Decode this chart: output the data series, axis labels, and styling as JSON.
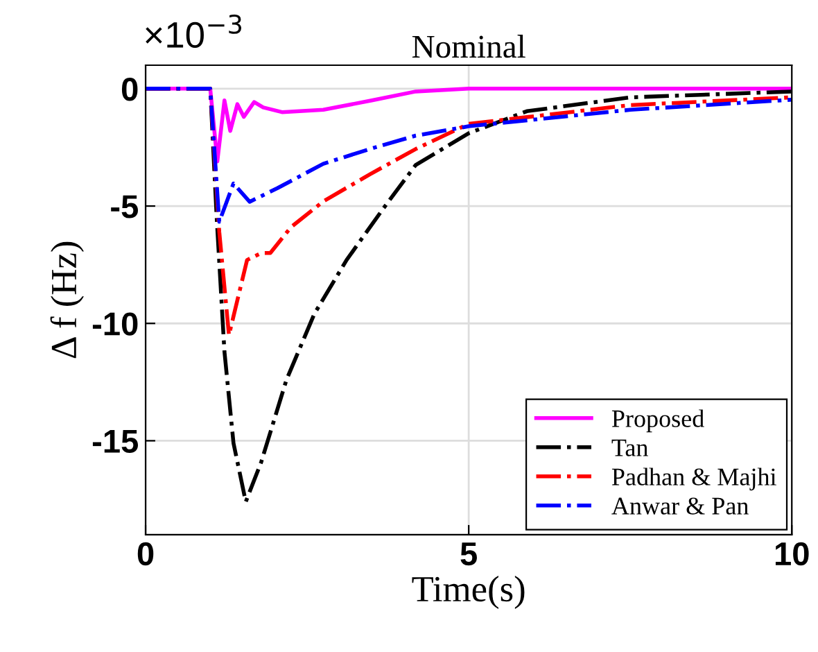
{
  "chart_data": {
    "type": "line",
    "title": "Nominal",
    "xlabel": "Time(s)",
    "ylabel": "Δ f (Hz)",
    "annotations": [
      "×10$^{−3}$"
    ],
    "xlim": [
      0,
      10
    ],
    "ylim": [
      -19,
      1
    ],
    "xticks": [
      0,
      5,
      10
    ],
    "yticks": [
      0,
      -5,
      -10,
      -15
    ],
    "grid": true,
    "legend": "bottom right",
    "marker": "none",
    "series": [
      {
        "name": "Proposed",
        "color": "#ff00ff",
        "line_style": "solid",
        "x": [
          0,
          1.0,
          1.11,
          1.22,
          1.31,
          1.42,
          1.52,
          1.68,
          1.82,
          2.11,
          2.75,
          3.5,
          4.18,
          5,
          6,
          10
        ],
        "values": [
          0,
          0,
          -3.1,
          -0.5,
          -1.8,
          -0.66,
          -1.2,
          -0.57,
          -0.8,
          -1.0,
          -0.9,
          -0.5,
          -0.12,
          0,
          0,
          0
        ]
      },
      {
        "name": "Tan",
        "color": "#000000",
        "line_style": "dashdot",
        "x": [
          0,
          1.0,
          1.1,
          1.22,
          1.36,
          1.55,
          1.79,
          2.18,
          2.61,
          3.11,
          3.68,
          4.18,
          5,
          5.9,
          7.5,
          10
        ],
        "values": [
          0,
          0,
          -5.5,
          -11.2,
          -15.1,
          -17.6,
          -15.9,
          -12.4,
          -9.6,
          -7.3,
          -5.1,
          -3.25,
          -1.9,
          -0.96,
          -0.37,
          -0.12
        ]
      },
      {
        "name": "Padhan & Majhi",
        "color": "#ff0000",
        "line_style": "dashdot",
        "x": [
          0,
          1.0,
          1.14,
          1.29,
          1.57,
          1.79,
          1.93,
          2.25,
          2.75,
          3.47,
          4.18,
          5,
          7.5,
          10
        ],
        "values": [
          0,
          0,
          -6.1,
          -10.5,
          -7.3,
          -7.0,
          -7.0,
          -5.9,
          -4.8,
          -3.65,
          -2.57,
          -1.5,
          -0.7,
          -0.37
        ]
      },
      {
        "name": "Anwar & Pan",
        "color": "#0000ff",
        "line_style": "dashdot",
        "x": [
          0,
          1.0,
          1.14,
          1.36,
          1.61,
          2.04,
          2.75,
          3.47,
          4.18,
          5,
          7.5,
          10
        ],
        "values": [
          0,
          0,
          -5.67,
          -4.04,
          -4.82,
          -4.24,
          -3.2,
          -2.57,
          -2.0,
          -1.6,
          -0.9,
          -0.47
        ]
      }
    ]
  }
}
